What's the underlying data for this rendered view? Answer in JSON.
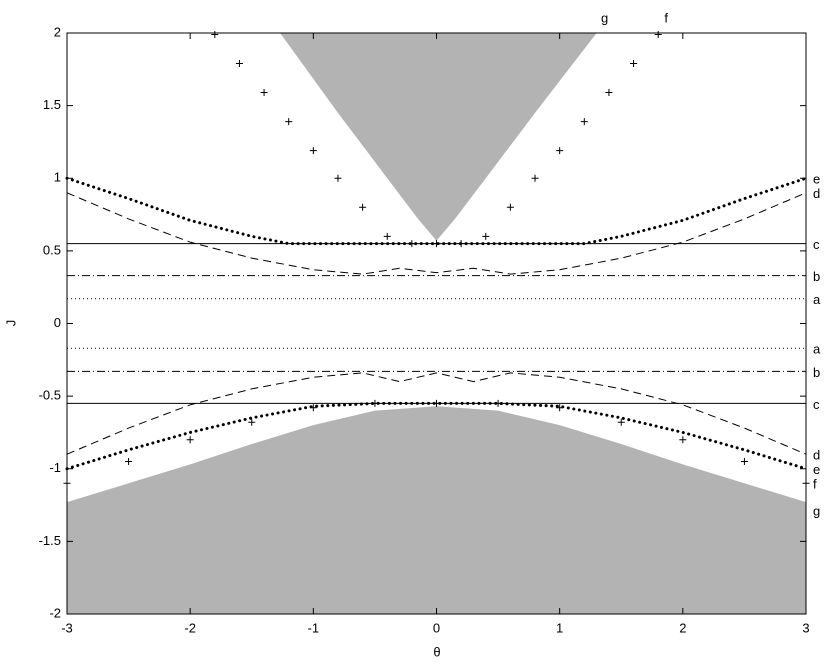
{
  "chart_data": {
    "type": "line",
    "xlabel": "θ",
    "ylabel": "J",
    "xlim": [
      -3,
      3
    ],
    "ylim": [
      -2,
      2
    ],
    "xticks": [
      -3,
      -2,
      -1,
      0,
      1,
      2,
      3
    ],
    "yticks": [
      -2,
      -1.5,
      -1,
      -0.5,
      0,
      0.5,
      1,
      1.5,
      2
    ],
    "series": [
      {
        "name": "g",
        "style": "fill",
        "fill_to": "top",
        "label_pos": "top",
        "color": "#b3b3b3",
        "x": [
          -1.27,
          -0.8,
          -0.4,
          -0.15,
          0,
          0.15,
          0.4,
          0.8,
          1.3
        ],
        "values": [
          2,
          1.45,
          1.0,
          0.72,
          0.57,
          0.72,
          1.0,
          1.45,
          2
        ]
      },
      {
        "name": "g",
        "style": "fill",
        "fill_to": "bottom",
        "label_pos": "right",
        "color": "#b3b3b3",
        "x": [
          -3,
          -2.5,
          -2,
          -1.5,
          -1,
          -0.5,
          0,
          0.5,
          1,
          1.5,
          2,
          2.5,
          3
        ],
        "values": [
          -1.23,
          -1.1,
          -0.97,
          -0.83,
          -0.7,
          -0.6,
          -0.57,
          -0.6,
          -0.7,
          -0.83,
          -0.97,
          -1.1,
          -1.23
        ]
      },
      {
        "name": "a",
        "style": "dotted",
        "label_pos": "right",
        "color": "#000000",
        "x": [
          -3,
          3
        ],
        "values": [
          0.17,
          0.17
        ]
      },
      {
        "name": "a",
        "style": "dotted",
        "label_pos": "right",
        "color": "#000000",
        "x": [
          -3,
          3
        ],
        "values": [
          -0.17,
          -0.17
        ]
      },
      {
        "name": "b",
        "style": "dashdot",
        "label_pos": "right",
        "color": "#000000",
        "x": [
          -3,
          3
        ],
        "values": [
          0.33,
          0.33
        ]
      },
      {
        "name": "b",
        "style": "dashdot",
        "label_pos": "right",
        "color": "#000000",
        "x": [
          -3,
          3
        ],
        "values": [
          -0.33,
          -0.33
        ]
      },
      {
        "name": "c",
        "style": "solid",
        "label_pos": "right",
        "color": "#000000",
        "x": [
          -3,
          3
        ],
        "values": [
          0.55,
          0.55
        ]
      },
      {
        "name": "c",
        "style": "solid",
        "label_pos": "right",
        "color": "#000000",
        "x": [
          -3,
          3
        ],
        "values": [
          -0.55,
          -0.55
        ]
      },
      {
        "name": "d",
        "style": "dashed",
        "label_pos": "right",
        "color": "#000000",
        "x": [
          -3,
          -2.5,
          -2,
          -1.5,
          -1,
          -0.6,
          -0.3,
          0,
          0.3,
          0.6,
          1,
          1.5,
          2,
          2.5,
          3
        ],
        "values": [
          0.9,
          0.72,
          0.56,
          0.45,
          0.37,
          0.34,
          0.38,
          0.35,
          0.38,
          0.34,
          0.37,
          0.45,
          0.56,
          0.72,
          0.9
        ]
      },
      {
        "name": "d",
        "style": "dashed",
        "label_pos": "right",
        "color": "#000000",
        "x": [
          -3,
          -2.5,
          -2,
          -1.5,
          -1,
          -0.6,
          -0.3,
          0,
          0.3,
          0.6,
          1,
          1.5,
          2,
          2.5,
          3
        ],
        "values": [
          -0.9,
          -0.72,
          -0.56,
          -0.45,
          -0.37,
          -0.34,
          -0.4,
          -0.34,
          -0.4,
          -0.34,
          -0.37,
          -0.45,
          -0.56,
          -0.72,
          -0.9
        ]
      },
      {
        "name": "e",
        "style": "dots",
        "label_pos": "right",
        "color": "#000000",
        "x": [
          -3,
          -2.5,
          -2,
          -1.5,
          -1.2,
          -0.6,
          0,
          0.6,
          1.2,
          1.5,
          2,
          2.5,
          3
        ],
        "values": [
          1.0,
          0.86,
          0.71,
          0.6,
          0.55,
          0.55,
          0.55,
          0.55,
          0.55,
          0.6,
          0.71,
          0.86,
          1.0
        ]
      },
      {
        "name": "e",
        "style": "dots",
        "label_pos": "right",
        "color": "#000000",
        "x": [
          -3,
          -2.5,
          -2,
          -1.5,
          -1,
          -0.5,
          0,
          0.5,
          1,
          1.5,
          2,
          2.5,
          3
        ],
        "values": [
          -1.0,
          -0.87,
          -0.75,
          -0.65,
          -0.57,
          -0.55,
          -0.55,
          -0.55,
          -0.57,
          -0.65,
          -0.75,
          -0.87,
          -1.0
        ]
      },
      {
        "name": "f",
        "style": "plus",
        "label_pos": "top",
        "color": "#000000",
        "x": [
          -1.8,
          -1.6,
          -1.4,
          -1.2,
          -1.0,
          -0.8,
          -0.6,
          -0.4,
          -0.2,
          0,
          0.2,
          0.4,
          0.6,
          0.8,
          1.0,
          1.2,
          1.4,
          1.6,
          1.8
        ],
        "values": [
          1.99,
          1.79,
          1.59,
          1.39,
          1.19,
          1.0,
          0.8,
          0.6,
          0.55,
          0.55,
          0.55,
          0.6,
          0.8,
          1.0,
          1.19,
          1.39,
          1.59,
          1.79,
          1.99
        ]
      },
      {
        "name": "f",
        "style": "plus",
        "label_pos": "right",
        "color": "#000000",
        "x": [
          -3,
          -2.5,
          -2,
          -1.5,
          -1,
          -0.5,
          0,
          0.5,
          1,
          1.5,
          2,
          2.5,
          3
        ],
        "values": [
          -1.1,
          -0.95,
          -0.8,
          -0.68,
          -0.58,
          -0.55,
          -0.55,
          -0.55,
          -0.58,
          -0.68,
          -0.8,
          -0.95,
          -1.1
        ]
      }
    ]
  }
}
